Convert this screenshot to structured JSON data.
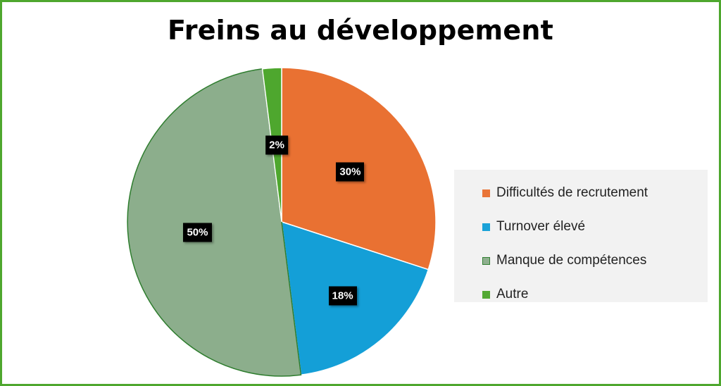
{
  "chart_data": {
    "type": "pie",
    "title": "Freins au développement",
    "categories": [
      "Difficultés de recrutement",
      "Turnover élevé",
      "Manque de compétences",
      "Autre"
    ],
    "values": [
      30,
      18,
      50,
      2
    ],
    "value_labels": [
      "30%",
      "18%",
      "50%",
      "2%"
    ],
    "colors": [
      "#e97132",
      "#149fd7",
      "#8cae8c",
      "#4ea72e"
    ],
    "slice_strokes": [
      "#ffffff",
      "#ffffff",
      "#2e7d2e",
      "#ffffff"
    ],
    "legend_position": "right",
    "start_angle_deg": 0,
    "direction": "clockwise"
  }
}
